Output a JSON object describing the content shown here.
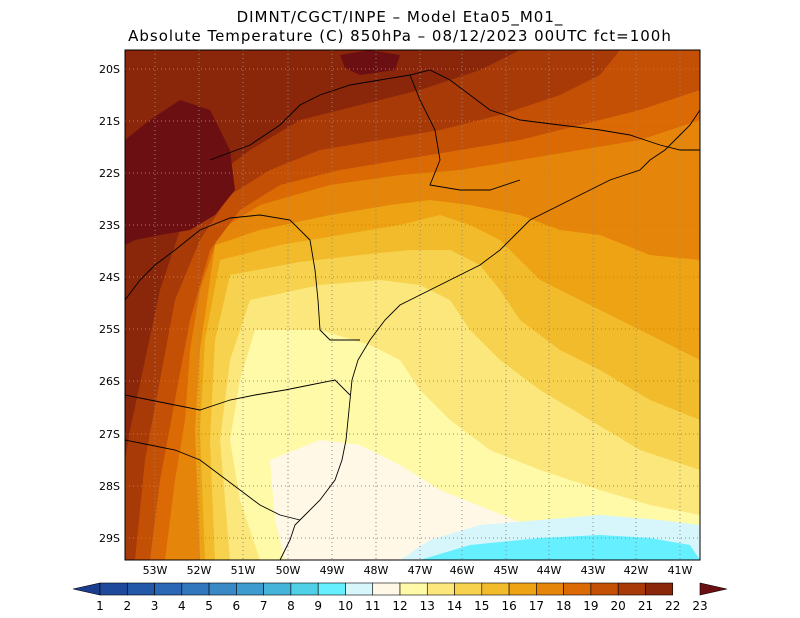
{
  "header": {
    "line1": "DIMNT/CGCT/INPE –  Model Eta05_M01_",
    "line2": "Absolute Temperature (C) 850hPa –  08/12/2023 00UTC fct=100h"
  },
  "axes": {
    "lat_labels": [
      "20S",
      "21S",
      "22S",
      "23S",
      "24S",
      "25S",
      "26S",
      "27S",
      "28S",
      "29S"
    ],
    "lon_labels": [
      "53W",
      "52W",
      "51W",
      "50W",
      "49W",
      "48W",
      "47W",
      "46W",
      "45W",
      "44W",
      "43W",
      "42W",
      "41W"
    ]
  },
  "colorbar": {
    "labels": [
      "1",
      "2",
      "3",
      "4",
      "5",
      "6",
      "7",
      "8",
      "9",
      "10",
      "11",
      "12",
      "13",
      "14",
      "15",
      "16",
      "17",
      "18",
      "19",
      "20",
      "21",
      "22",
      "23"
    ],
    "colors": [
      "#1b3d8f",
      "#1f4a9c",
      "#2357a8",
      "#2a67b4",
      "#3077bd",
      "#3889c6",
      "#3e9bcf",
      "#45b4da",
      "#4fd0e6",
      "#66f0ff",
      "#d6f6fb",
      "#fff8e6",
      "#fffaa8",
      "#fbe77b",
      "#f6d24e",
      "#f2bb2c",
      "#eda314",
      "#e5850a",
      "#db6a05",
      "#c45006",
      "#a83a08",
      "#8a2609",
      "#6b0f12"
    ]
  },
  "field_colors": {
    "t22": "#6b0f12",
    "t21": "#8a2609",
    "t20": "#a83a08",
    "t19": "#c45006",
    "t18": "#db6a05",
    "t17": "#e5850a",
    "t16": "#eda314",
    "t15": "#f2bb2c",
    "t14": "#f6d24e",
    "t13": "#fbe77b",
    "t12": "#fffaa8",
    "t11": "#fff8e6",
    "t10": "#d6f6fb",
    "t9": "#66f0ff"
  }
}
